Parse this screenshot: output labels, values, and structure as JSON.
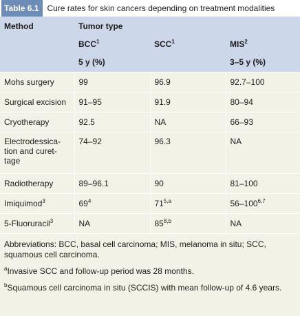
{
  "caption": {
    "number": "Table 6.1",
    "title": "Cure rates for skin cancers depending on treatment modalities"
  },
  "header": {
    "method": "Method",
    "tumor_type": "Tumor type",
    "columns": [
      {
        "label": "BCC",
        "sup": "1"
      },
      {
        "label": "SCC",
        "sup": "1"
      },
      {
        "label": "MIS",
        "sup": "2"
      }
    ],
    "period_bcc_scc": "5 y (%)",
    "period_mis": "3–5 y (%)"
  },
  "rows": [
    {
      "method": [
        "Mohs surgery"
      ],
      "method_sup": "",
      "bcc": "99",
      "bcc_sup": "",
      "scc": "96.9",
      "scc_sup": "",
      "mis": "92.7–100",
      "mis_sup": ""
    },
    {
      "method": [
        "Surgical excision"
      ],
      "method_sup": "",
      "bcc": "91–95",
      "bcc_sup": "",
      "scc": "91.9",
      "scc_sup": "",
      "mis": "80–94",
      "mis_sup": ""
    },
    {
      "method": [
        "Cryotherapy"
      ],
      "method_sup": "",
      "bcc": "92.5",
      "bcc_sup": "",
      "scc": "NA",
      "scc_sup": "",
      "mis": "66–93",
      "mis_sup": ""
    },
    {
      "method": [
        "Electrodessica-",
        "tion and curet-",
        "tage"
      ],
      "method_sup": "",
      "bcc": "74–92",
      "bcc_sup": "",
      "scc": "96.3",
      "scc_sup": "",
      "mis": "NA",
      "mis_sup": ""
    },
    {
      "method": [
        "Radiotherapy"
      ],
      "method_sup": "",
      "bcc": "89–96.1",
      "bcc_sup": "",
      "scc": "90",
      "scc_sup": "",
      "mis": "81–100",
      "mis_sup": ""
    },
    {
      "method": [
        "Imiquimod"
      ],
      "method_sup": "3",
      "bcc": "69",
      "bcc_sup": "4",
      "scc": "71",
      "scc_sup": "5,a",
      "mis": "56–100",
      "mis_sup": "6,7"
    },
    {
      "method": [
        "5-Fluoruracil"
      ],
      "method_sup": "3",
      "bcc": "NA",
      "bcc_sup": "",
      "scc": "85",
      "scc_sup": "8,b",
      "mis": "NA",
      "mis_sup": ""
    }
  ],
  "footnotes": {
    "abbreviations": "Abbreviations: BCC, basal cell carcinoma; MIS, melanoma in situ; SCC, squamous cell carcinoma.",
    "a_mark": "a",
    "a_text": "Invasive SCC and follow-up period was 28 months.",
    "b_mark": "b",
    "b_text": "Squamous cell carcinoma in situ (SCCIS) with mean follow-up of 4.6 years."
  }
}
